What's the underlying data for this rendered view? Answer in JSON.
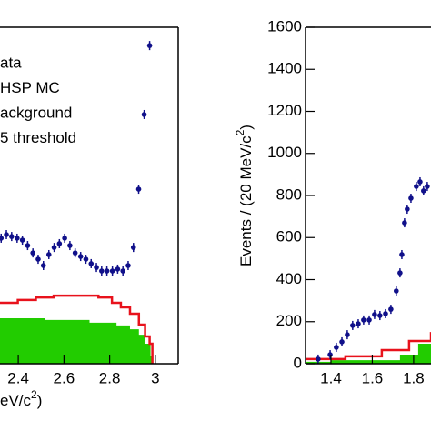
{
  "chart_data": [
    {
      "type": "scatter",
      "x_label": [
        "eV/c",
        "2",
        ")"
      ],
      "legend": [
        "ata",
        "HSP MC",
        "ackground",
        "5 threshold"
      ],
      "xlim": [
        2.32,
        3.1
      ],
      "ylim": [
        0,
        1600
      ],
      "xticks": [
        2.4,
        2.6,
        2.8,
        3
      ],
      "series": [
        {
          "kind": "points",
          "color": "#10108a",
          "x": [
            2.325,
            2.348,
            2.371,
            2.395,
            2.418,
            2.441,
            2.464,
            2.487,
            2.51,
            2.534,
            2.557,
            2.58,
            2.603,
            2.626,
            2.649,
            2.673,
            2.696,
            2.719,
            2.742,
            2.765,
            2.788,
            2.812,
            2.835,
            2.858,
            2.881,
            2.904,
            2.927,
            2.951,
            2.975
          ],
          "values": [
            597,
            614,
            605,
            597,
            588,
            562,
            527,
            497,
            467,
            519,
            553,
            571,
            597,
            562,
            527,
            510,
            497,
            476,
            458,
            441,
            441,
            441,
            450,
            441,
            467,
            553,
            830,
            1185,
            1513
          ]
        },
        {
          "kind": "hist",
          "color": "#e8121c",
          "x": [
            2.32,
            2.398,
            2.477,
            2.555,
            2.673,
            2.751,
            2.81,
            2.849,
            2.889,
            2.928,
            2.955,
            2.975,
            2.987
          ],
          "values": [
            290,
            303,
            315,
            324,
            324,
            315,
            290,
            268,
            238,
            186,
            130,
            95,
            0
          ]
        },
        {
          "kind": "fill",
          "color": "#22cc00",
          "x": [
            2.32,
            2.516,
            2.712,
            2.83,
            2.889,
            2.928,
            2.955,
            2.979,
            2.987
          ],
          "values": [
            216,
            208,
            195,
            182,
            164,
            138,
            95,
            35,
            0
          ]
        }
      ]
    },
    {
      "type": "scatter",
      "y_label": [
        "Events / (20 MeV/c",
        "2",
        ")"
      ],
      "xlim": [
        1.277,
        1.884
      ],
      "ylim": [
        0,
        1600
      ],
      "xticks": [
        1.4,
        1.6,
        1.8
      ],
      "yticks": [
        0,
        200,
        400,
        600,
        800,
        1000,
        1200,
        1400,
        1600
      ],
      "series": [
        {
          "kind": "points",
          "color": "#10108a",
          "x": [
            1.338,
            1.396,
            1.426,
            1.453,
            1.479,
            1.505,
            1.532,
            1.558,
            1.585,
            1.611,
            1.637,
            1.664,
            1.69,
            1.716,
            1.734,
            1.743,
            1.756,
            1.769,
            1.787,
            1.813,
            1.831,
            1.848,
            1.866
          ],
          "values": [
            22,
            43,
            78,
            104,
            138,
            182,
            190,
            208,
            208,
            234,
            229,
            238,
            259,
            346,
            432,
            519,
            670,
            735,
            787,
            843,
            865,
            822,
            843
          ]
        },
        {
          "kind": "hist",
          "color": "#e8121c",
          "x": [
            1.277,
            1.47,
            1.646,
            1.778,
            1.884
          ],
          "values": [
            22,
            35,
            65,
            108,
            151
          ]
        },
        {
          "kind": "fill",
          "color": "#22cc00",
          "x": [
            1.277,
            1.4,
            1.734,
            1.822,
            1.884
          ],
          "values": [
            9,
            17,
            43,
            95,
            173
          ]
        }
      ]
    }
  ]
}
